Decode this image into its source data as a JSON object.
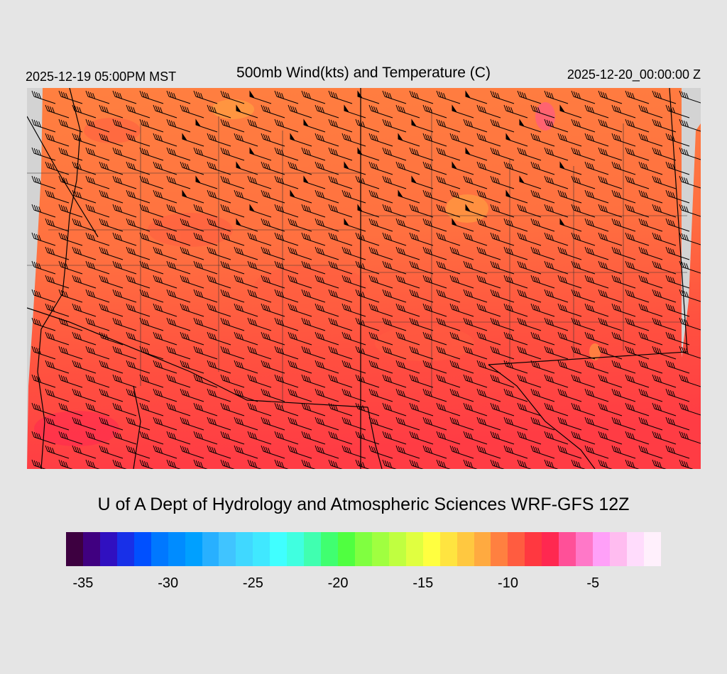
{
  "header": {
    "local_time": "2025-12-19 05:00PM MST",
    "title": "500mb Wind(kts) and Temperature (C)",
    "valid_time": "2025-12-20_00:00:00 Z"
  },
  "footer": {
    "credit": "U of A Dept of Hydrology and Atmospheric Sciences WRF-GFS 12Z"
  },
  "colorbar": {
    "units": "C",
    "min": -35,
    "max": -1,
    "colors": [
      "#3d0040",
      "#400080",
      "#3010c0",
      "#1830e8",
      "#0050ff",
      "#0078ff",
      "#008cff",
      "#00a0ff",
      "#28b0ff",
      "#40c4ff",
      "#40d8ff",
      "#40e8ff",
      "#40ffff",
      "#40ffe0",
      "#40ffb0",
      "#40ff70",
      "#50ff40",
      "#80ff40",
      "#a0ff40",
      "#c0ff40",
      "#e0ff40",
      "#ffff40",
      "#ffe440",
      "#ffc840",
      "#ffaa40",
      "#ff8040",
      "#ff5c40",
      "#ff3840",
      "#ff2850",
      "#ff5098",
      "#ff78c8",
      "#ffa0f8",
      "#ffbcf0",
      "#ffdcfc",
      "#fff0fc"
    ],
    "labels": [
      "-35",
      "-30",
      "-25",
      "-20",
      "-15",
      "-10",
      "-5"
    ]
  }
}
